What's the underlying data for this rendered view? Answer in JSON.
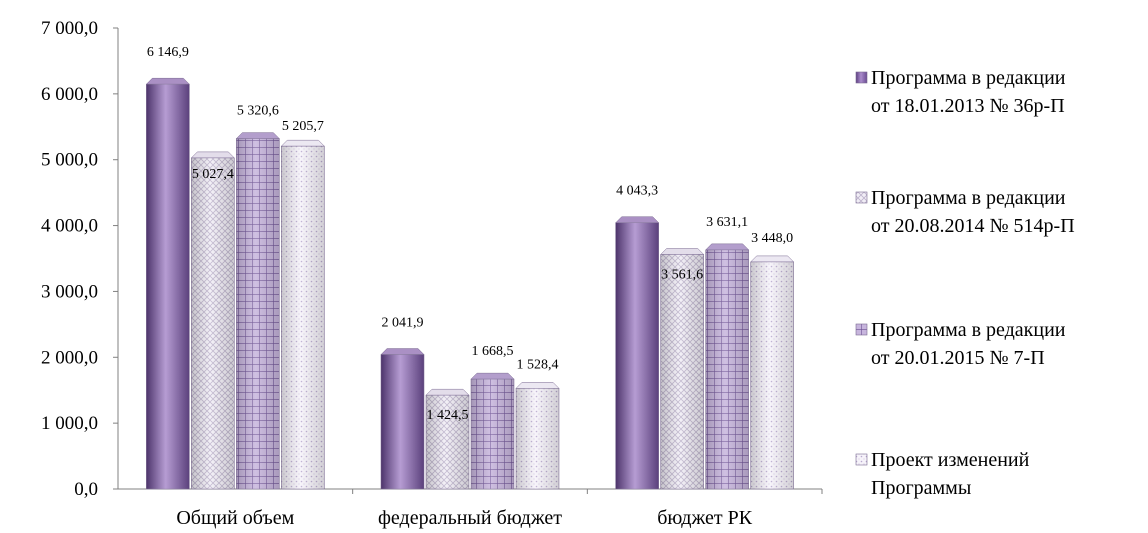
{
  "chart_data": {
    "type": "bar",
    "categories": [
      "Общий объем",
      "федеральный бюджет",
      "бюджет РК"
    ],
    "series": [
      {
        "name": "Программа в редакции от 18.01.2013 № 36р-П",
        "values": [
          6146.9,
          2041.9,
          4043.3
        ],
        "labels": [
          "6 146,9",
          "2 041,9",
          "4 043,3"
        ],
        "color": "#8e6bb0"
      },
      {
        "name": "Программа в редакции от 20.08.2014 № 514р-П",
        "values": [
          5027.4,
          1424.5,
          3561.6
        ],
        "labels": [
          "5 027,4",
          "1 424,5",
          "3 561,6"
        ],
        "color": "#d9d2e3"
      },
      {
        "name": "Программа в редакции от 20.01.2015 № 7-П",
        "values": [
          5320.6,
          1668.5,
          3631.1
        ],
        "labels": [
          "5 320,6",
          "1 668,5",
          "3 631,1"
        ],
        "color": "#9a7dbb"
      },
      {
        "name": "Проект изменений Программы",
        "values": [
          5205.7,
          1528.4,
          3448.0
        ],
        "labels": [
          "5 205,7",
          "1 528,4",
          "3 448,0"
        ],
        "color": "#e6e0ee"
      }
    ],
    "legend_lines": [
      [
        "Программа в редакции",
        "от 18.01.2013 № 36р-П"
      ],
      [
        "Программа в редакции",
        "от 20.08.2014 № 514р-П"
      ],
      [
        "Программа в редакции",
        "от 20.01.2015 № 7-П"
      ],
      [
        "Проект изменений",
        "Программы"
      ]
    ],
    "yticks": [
      "0,0",
      "1 000,0",
      "2 000,0",
      "3 000,0",
      "4 000,0",
      "5 000,0",
      "6 000,0",
      "7 000,0"
    ],
    "ylim": [
      0,
      7000
    ],
    "grid": false,
    "legend_position": "right"
  }
}
